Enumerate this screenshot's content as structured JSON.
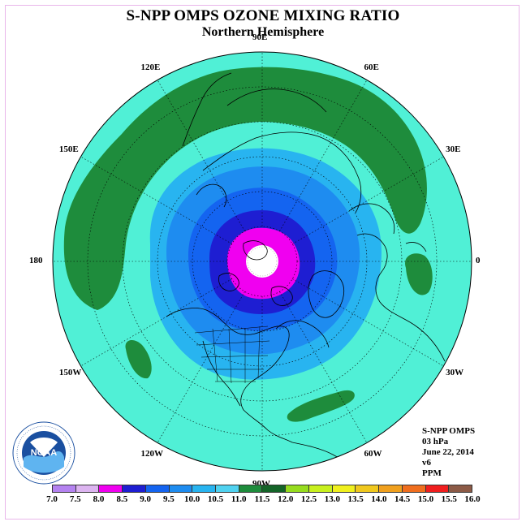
{
  "title": "S-NPP OMPS OZONE MIXING RATIO",
  "subtitle": "Northern Hemisphere",
  "longitude_labels": [
    {
      "label": "90E",
      "lon": 90
    },
    {
      "label": "60E",
      "lon": 60
    },
    {
      "label": "30E",
      "lon": 30
    },
    {
      "label": "0",
      "lon": 0
    },
    {
      "label": "30W",
      "lon": -30
    },
    {
      "label": "60W",
      "lon": -60
    },
    {
      "label": "90W",
      "lon": -90
    },
    {
      "label": "120W",
      "lon": -120
    },
    {
      "label": "150W",
      "lon": -150
    },
    {
      "label": "180",
      "lon": 180
    },
    {
      "label": "150E",
      "lon": 150
    },
    {
      "label": "120E",
      "lon": 120
    }
  ],
  "info": {
    "product": "S-NPP OMPS",
    "level": "03 hPa",
    "date": "June 22, 2014",
    "version": "v6",
    "units": "PPM"
  },
  "colorbar": {
    "ticks": [
      "7.0",
      "7.5",
      "8.0",
      "8.5",
      "9.0",
      "9.5",
      "10.0",
      "10.5",
      "11.0",
      "11.5",
      "12.0",
      "12.5",
      "13.0",
      "13.5",
      "14.0",
      "14.5",
      "15.0",
      "15.5",
      "16.0"
    ],
    "colors": [
      "#b482f0",
      "#dcb4f0",
      "#f000f0",
      "#1e1ed2",
      "#1464f0",
      "#1e8cf0",
      "#28b4f0",
      "#50d2f0",
      "#1e8c3c",
      "#146428",
      "#96dc1e",
      "#c8f01e",
      "#f0f01e",
      "#f0c81e",
      "#f0a01e",
      "#f06e1e",
      "#f01e1e",
      "#8c5a46"
    ]
  },
  "map_colors": {
    "cyan": "#50f0d6",
    "green": "#1e8c3c",
    "dark_green": "#146428",
    "light_blue": "#28b4f0",
    "med_blue": "#1e8cf0",
    "blue": "#1464f0",
    "dark_blue": "#1e1ed2",
    "magenta": "#f000f0"
  },
  "logo": {
    "text": "NOAA",
    "ring_text": "NATIONAL OCEANIC AND ATMOSPHERIC ADMINISTRATION"
  }
}
